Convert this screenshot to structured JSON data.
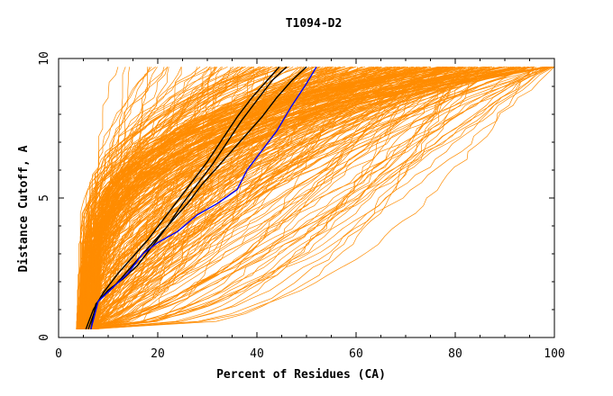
{
  "chart_data": {
    "type": "line",
    "title": "T1094-D2",
    "xlabel": "Percent of Residues (CA)",
    "ylabel": "Distance Cutoff, A",
    "xlim": [
      0,
      100
    ],
    "ylim": [
      0,
      10
    ],
    "x_ticks": [
      "0",
      "20",
      "40",
      "60",
      "80",
      "100"
    ],
    "x_tick_values": [
      0,
      20,
      40,
      60,
      80,
      100
    ],
    "y_ticks": [
      "0",
      "5",
      "10"
    ],
    "y_tick_values": [
      0,
      5,
      10
    ],
    "grid": false,
    "colors": {
      "background_series": "#ff8c00",
      "highlight_black": "#000000",
      "highlight_blue": "#0000ff",
      "axis": "#000000"
    },
    "background_series_note": "Several hundred orange GDT curves spanning the full plot",
    "highlight_series": [
      {
        "name": "black-1",
        "color": "#000000",
        "points": [
          [
            6.5,
            0.3
          ],
          [
            7.5,
            1.2
          ],
          [
            10,
            1.7
          ],
          [
            13,
            2.1
          ],
          [
            16,
            2.6
          ],
          [
            19,
            3.3
          ],
          [
            22,
            4.0
          ],
          [
            25,
            4.8
          ],
          [
            28,
            5.5
          ],
          [
            31,
            6.2
          ],
          [
            34,
            7.0
          ],
          [
            37,
            7.8
          ],
          [
            40,
            8.5
          ],
          [
            43,
            9.2
          ],
          [
            46,
            9.7
          ]
        ]
      },
      {
        "name": "black-2",
        "color": "#000000",
        "points": [
          [
            5.5,
            0.3
          ],
          [
            7,
            1.0
          ],
          [
            9,
            1.6
          ],
          [
            12,
            2.3
          ],
          [
            15,
            2.9
          ],
          [
            18,
            3.5
          ],
          [
            21,
            4.2
          ],
          [
            24,
            4.9
          ],
          [
            27,
            5.6
          ],
          [
            30,
            6.3
          ],
          [
            33,
            7.1
          ],
          [
            36,
            7.9
          ],
          [
            39,
            8.6
          ],
          [
            42,
            9.2
          ],
          [
            44.5,
            9.7
          ]
        ]
      },
      {
        "name": "black-3",
        "color": "#000000",
        "points": [
          [
            6,
            0.3
          ],
          [
            8,
            1.3
          ],
          [
            11,
            1.8
          ],
          [
            14,
            2.4
          ],
          [
            17,
            3.0
          ],
          [
            20,
            3.6
          ],
          [
            23,
            4.2
          ],
          [
            26,
            4.8
          ],
          [
            29,
            5.5
          ],
          [
            33,
            6.3
          ],
          [
            37,
            7.1
          ],
          [
            41,
            7.9
          ],
          [
            44,
            8.6
          ],
          [
            47,
            9.2
          ],
          [
            50,
            9.7
          ]
        ]
      },
      {
        "name": "blue",
        "color": "#0000ff",
        "points": [
          [
            6.5,
            0.3
          ],
          [
            8,
            1.3
          ],
          [
            11,
            1.8
          ],
          [
            14,
            2.3
          ],
          [
            17,
            3.0
          ],
          [
            20,
            3.4
          ],
          [
            24,
            3.8
          ],
          [
            28,
            4.4
          ],
          [
            32,
            4.8
          ],
          [
            36,
            5.3
          ],
          [
            38,
            6.0
          ],
          [
            41,
            6.7
          ],
          [
            44,
            7.4
          ],
          [
            47,
            8.3
          ],
          [
            50,
            9.1
          ],
          [
            52,
            9.7
          ]
        ]
      }
    ]
  }
}
